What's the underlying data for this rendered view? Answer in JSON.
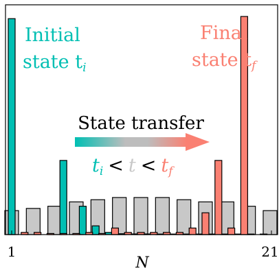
{
  "chart_data": {
    "type": "bar",
    "xlabel": "N",
    "xlim": [
      1,
      21
    ],
    "ylim": [
      0,
      1
    ],
    "x_tick_labels": [
      "1",
      "21"
    ],
    "grid": false,
    "sites": [
      1,
      2,
      3,
      4,
      5,
      6,
      7,
      8,
      9,
      10,
      11,
      12,
      13,
      14,
      15,
      16,
      17,
      18,
      19,
      20,
      21
    ],
    "series": [
      {
        "id": "initial",
        "color": "#00BFB3",
        "values": [
          0.99,
          0,
          0,
          0,
          0,
          0,
          0,
          0,
          0.34,
          0,
          0,
          0.13,
          0,
          0.04,
          0,
          0.01,
          0,
          0.004,
          0,
          0.003,
          0,
          0.003,
          0,
          0.002,
          0,
          0.002,
          0,
          0.002,
          0,
          0.002,
          0,
          0.002,
          0,
          0.002,
          0,
          0.002,
          0,
          0.001,
          0,
          0.001,
          0
        ]
      },
      {
        "id": "final",
        "color": "#FA8072",
        "values": [
          0,
          0.01,
          0,
          0.01,
          0,
          0.005,
          0,
          0.005,
          0,
          0.005,
          0,
          0.01,
          0,
          0.005,
          0,
          0.03,
          0,
          0.01,
          0,
          0.01,
          0,
          0.01,
          0,
          0.01,
          0,
          0.01,
          0,
          0.03,
          0,
          0.1,
          0,
          0.34,
          0,
          0.03,
          0,
          1.0
        ]
      },
      {
        "id": "intermediate",
        "color": "#C8C8C8",
        "values": [
          0.11,
          0.12,
          0.13,
          0.15,
          0.16,
          0.17,
          0.17,
          0.17,
          0.16,
          0.15,
          0.15,
          0.13,
          0.11
        ]
      }
    ],
    "annotations": {
      "initial_line1": "Initial",
      "initial_line2": "state t",
      "initial_sub": "i",
      "final_line1": "Final",
      "final_line2": "state t",
      "final_sub": "f",
      "transfer": "State transfer",
      "ineq_ti": "t",
      "ineq_ti_sub": "i",
      "ineq_lt1": "<",
      "ineq_t": "t",
      "ineq_lt2": "<",
      "ineq_tf": "t",
      "ineq_tf_sub": "f"
    }
  },
  "colors": {
    "initial": "#00BFB3",
    "final": "#FA8072",
    "intermediate": "#C8C8C8",
    "arrow_mid": "#BDBDBD"
  }
}
